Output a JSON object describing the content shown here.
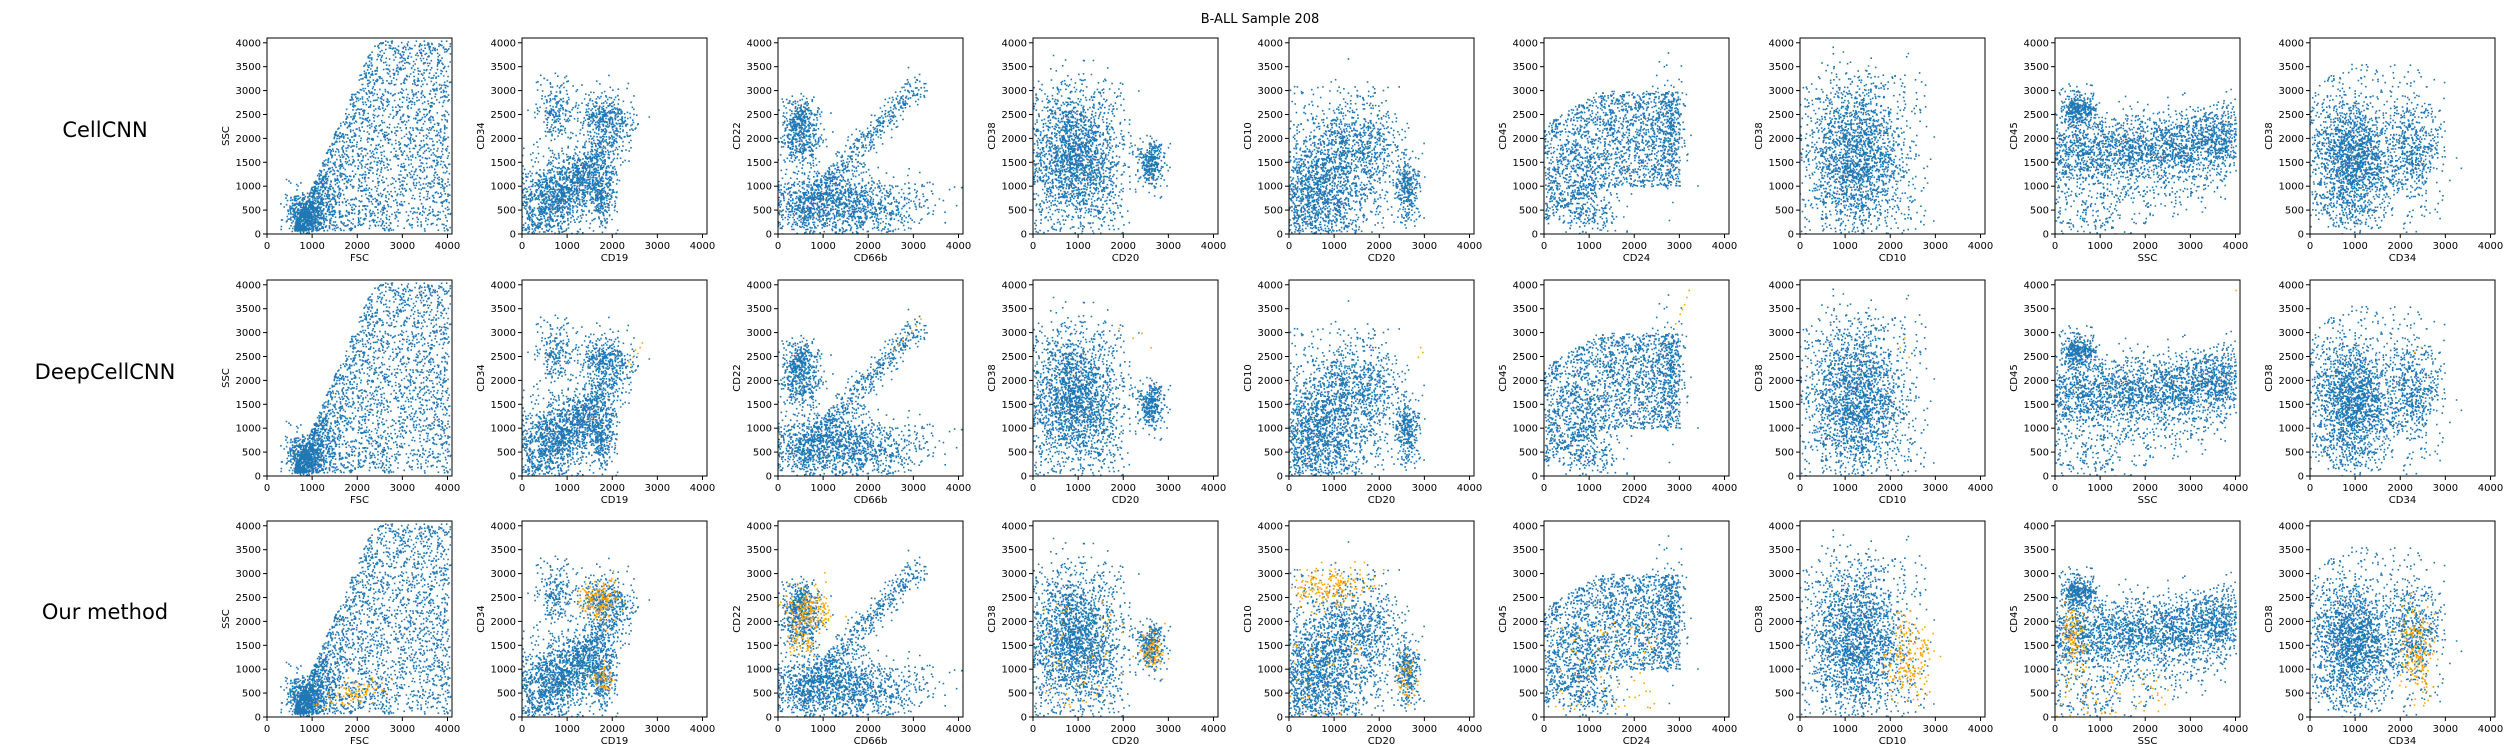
{
  "figure": {
    "title": "B-ALL Sample 208",
    "rows": [
      "CellCNN",
      "DeepCellCNN",
      "Our method"
    ],
    "colors": {
      "cells": "#1f77b4",
      "selected": "#ffa500"
    }
  },
  "chart_data": [
    {
      "type": "scatter",
      "row": "CellCNN",
      "xlabel": "FSC",
      "ylabel": "SSC",
      "xlim": [
        0,
        4100
      ],
      "ylim": [
        0,
        4100
      ],
      "xticks": [
        0,
        1000,
        2000,
        3000,
        4000
      ],
      "yticks": [
        0,
        500,
        1000,
        1500,
        2000,
        2500,
        3000,
        3500,
        4000
      ],
      "series": [
        {
          "values": []
        }
      ]
    },
    {
      "type": "scatter",
      "row": "CellCNN",
      "xlabel": "CD19",
      "ylabel": "CD34",
      "xlim": [
        0,
        4100
      ],
      "ylim": [
        0,
        4100
      ],
      "xticks": [
        0,
        1000,
        2000,
        3000,
        4000
      ],
      "yticks": [
        0,
        500,
        1000,
        1500,
        2000,
        2500,
        3000,
        3500,
        4000
      ],
      "series": [
        {
          "values": []
        }
      ]
    },
    {
      "type": "scatter",
      "row": "CellCNN",
      "xlabel": "CD66b",
      "ylabel": "CD22",
      "xlim": [
        0,
        4100
      ],
      "ylim": [
        0,
        4100
      ],
      "xticks": [
        0,
        1000,
        2000,
        3000,
        4000
      ],
      "yticks": [
        0,
        500,
        1000,
        1500,
        2000,
        2500,
        3000,
        3500,
        4000
      ],
      "series": [
        {
          "values": []
        }
      ]
    },
    {
      "type": "scatter",
      "row": "CellCNN",
      "xlabel": "CD20",
      "ylabel": "CD38",
      "xlim": [
        0,
        4100
      ],
      "ylim": [
        0,
        4100
      ],
      "xticks": [
        0,
        1000,
        2000,
        3000,
        4000
      ],
      "yticks": [
        0,
        500,
        1000,
        1500,
        2000,
        2500,
        3000,
        3500,
        4000
      ],
      "series": [
        {
          "values": []
        }
      ]
    },
    {
      "type": "scatter",
      "row": "CellCNN",
      "xlabel": "CD20",
      "ylabel": "CD10",
      "xlim": [
        0,
        4100
      ],
      "ylim": [
        0,
        4100
      ],
      "xticks": [
        0,
        1000,
        2000,
        3000,
        4000
      ],
      "yticks": [
        0,
        500,
        1000,
        1500,
        2000,
        2500,
        3000,
        3500,
        4000
      ],
      "series": [
        {
          "values": []
        }
      ]
    },
    {
      "type": "scatter",
      "row": "CellCNN",
      "xlabel": "CD24",
      "ylabel": "CD45",
      "xlim": [
        0,
        4100
      ],
      "ylim": [
        0,
        4100
      ],
      "xticks": [
        0,
        1000,
        2000,
        3000,
        4000
      ],
      "yticks": [
        0,
        500,
        1000,
        1500,
        2000,
        2500,
        3000,
        3500,
        4000
      ],
      "series": [
        {
          "values": []
        }
      ]
    },
    {
      "type": "scatter",
      "row": "CellCNN",
      "xlabel": "CD10",
      "ylabel": "CD38",
      "xlim": [
        0,
        4100
      ],
      "ylim": [
        0,
        4100
      ],
      "xticks": [
        0,
        1000,
        2000,
        3000,
        4000
      ],
      "yticks": [
        0,
        500,
        1000,
        1500,
        2000,
        2500,
        3000,
        3500,
        4000
      ],
      "series": [
        {
          "values": []
        }
      ]
    },
    {
      "type": "scatter",
      "row": "CellCNN",
      "xlabel": "SSC",
      "ylabel": "CD45",
      "xlim": [
        0,
        4100
      ],
      "ylim": [
        0,
        4100
      ],
      "xticks": [
        0,
        1000,
        2000,
        3000,
        4000
      ],
      "yticks": [
        0,
        500,
        1000,
        1500,
        2000,
        2500,
        3000,
        3500,
        4000
      ],
      "series": [
        {
          "values": []
        }
      ]
    },
    {
      "type": "scatter",
      "row": "CellCNN",
      "xlabel": "CD34",
      "ylabel": "CD38",
      "xlim": [
        0,
        4100
      ],
      "ylim": [
        0,
        4100
      ],
      "xticks": [
        0,
        1000,
        2000,
        3000,
        4000
      ],
      "yticks": [
        0,
        500,
        1000,
        1500,
        2000,
        2500,
        3000,
        3500,
        4000
      ],
      "series": [
        {
          "values": []
        }
      ]
    },
    {
      "type": "scatter",
      "row": "DeepCellCNN",
      "xlabel": "FSC",
      "ylabel": "SSC",
      "xlim": [
        0,
        4100
      ],
      "ylim": [
        0,
        4100
      ],
      "xticks": [
        0,
        1000,
        2000,
        3000,
        4000
      ],
      "yticks": [
        0,
        500,
        1000,
        1500,
        2000,
        2500,
        3000,
        3500,
        4000
      ],
      "series": [
        {
          "values": []
        },
        {
          "values": []
        }
      ]
    },
    {
      "type": "scatter",
      "row": "DeepCellCNN",
      "xlabel": "CD19",
      "ylabel": "CD34",
      "xlim": [
        0,
        4100
      ],
      "ylim": [
        0,
        4100
      ],
      "xticks": [
        0,
        1000,
        2000,
        3000,
        4000
      ],
      "yticks": [
        0,
        500,
        1000,
        1500,
        2000,
        2500,
        3000,
        3500,
        4000
      ],
      "series": [
        {
          "values": []
        },
        {
          "values": [
            [
              2350,
              2400
            ],
            [
              2450,
              2500
            ],
            [
              2550,
              2580
            ],
            [
              2500,
              2650
            ],
            [
              2600,
              2700
            ],
            [
              2400,
              2350
            ],
            [
              2650,
              2800
            ]
          ]
        }
      ]
    },
    {
      "type": "scatter",
      "row": "DeepCellCNN",
      "xlabel": "CD66b",
      "ylabel": "CD22",
      "xlim": [
        0,
        4100
      ],
      "ylim": [
        0,
        4100
      ],
      "xticks": [
        0,
        1000,
        2000,
        3000,
        4000
      ],
      "yticks": [
        0,
        500,
        1000,
        1500,
        2000,
        2500,
        3000,
        3500,
        4000
      ],
      "series": [
        {
          "values": []
        },
        {
          "values": [
            [
              2650,
              2750
            ],
            [
              2750,
              2850
            ],
            [
              2850,
              2950
            ],
            [
              2950,
              3050
            ],
            [
              3050,
              3150
            ],
            [
              3150,
              3300
            ],
            [
              2550,
              2650
            ]
          ]
        }
      ]
    },
    {
      "type": "scatter",
      "row": "DeepCellCNN",
      "xlabel": "CD20",
      "ylabel": "CD38",
      "xlim": [
        0,
        4100
      ],
      "ylim": [
        0,
        4100
      ],
      "xticks": [
        0,
        1000,
        2000,
        3000,
        4000
      ],
      "yticks": [
        0,
        500,
        1000,
        1500,
        2000,
        2500,
        3000,
        3500,
        4000
      ],
      "series": [
        {
          "values": []
        },
        {
          "values": [
            [
              2200,
              2900
            ],
            [
              2600,
              2700
            ],
            [
              1900,
              3100
            ],
            [
              2400,
              3000
            ]
          ]
        }
      ]
    },
    {
      "type": "scatter",
      "row": "DeepCellCNN",
      "xlabel": "CD20",
      "ylabel": "CD10",
      "xlim": [
        0,
        4100
      ],
      "ylim": [
        0,
        4100
      ],
      "xticks": [
        0,
        1000,
        2000,
        3000,
        4000
      ],
      "yticks": [
        0,
        500,
        1000,
        1500,
        2000,
        2500,
        3000,
        3500,
        4000
      ],
      "series": [
        {
          "values": []
        },
        {
          "values": [
            [
              2900,
              2700
            ],
            [
              2950,
              2600
            ],
            [
              2850,
              2500
            ]
          ]
        }
      ]
    },
    {
      "type": "scatter",
      "row": "DeepCellCNN",
      "xlabel": "CD24",
      "ylabel": "CD45",
      "xlim": [
        0,
        4100
      ],
      "ylim": [
        0,
        4100
      ],
      "xticks": [
        0,
        1000,
        2000,
        3000,
        4000
      ],
      "yticks": [
        0,
        500,
        1000,
        1500,
        2000,
        2500,
        3000,
        3500,
        4000
      ],
      "series": [
        {
          "values": []
        },
        {
          "values": [
            [
              2900,
              3200
            ],
            [
              3050,
              3500
            ],
            [
              3150,
              3750
            ],
            [
              3000,
              3400
            ],
            [
              3200,
              3900
            ],
            [
              3100,
              3600
            ]
          ]
        }
      ]
    },
    {
      "type": "scatter",
      "row": "DeepCellCNN",
      "xlabel": "CD10",
      "ylabel": "CD38",
      "xlim": [
        0,
        4100
      ],
      "ylim": [
        0,
        4100
      ],
      "xticks": [
        0,
        1000,
        2000,
        3000,
        4000
      ],
      "yticks": [
        0,
        500,
        1000,
        1500,
        2000,
        2500,
        3000,
        3500,
        4000
      ],
      "series": [
        {
          "values": []
        },
        {
          "values": [
            [
              2300,
              2900
            ],
            [
              2200,
              2700
            ],
            [
              2400,
              2500
            ]
          ]
        }
      ]
    },
    {
      "type": "scatter",
      "row": "DeepCellCNN",
      "xlabel": "SSC",
      "ylabel": "CD45",
      "xlim": [
        0,
        4100
      ],
      "ylim": [
        0,
        4100
      ],
      "xticks": [
        0,
        1000,
        2000,
        3000,
        4000
      ],
      "yticks": [
        0,
        500,
        1000,
        1500,
        2000,
        2500,
        3000,
        3500,
        4000
      ],
      "series": [
        {
          "values": []
        },
        {
          "values": [
            [
              4000,
              3900
            ]
          ]
        }
      ]
    },
    {
      "type": "scatter",
      "row": "DeepCellCNN",
      "xlabel": "CD34",
      "ylabel": "CD38",
      "xlim": [
        0,
        4100
      ],
      "ylim": [
        0,
        4100
      ],
      "xticks": [
        0,
        1000,
        2000,
        3000,
        4000
      ],
      "yticks": [
        0,
        500,
        1000,
        1500,
        2000,
        2500,
        3000,
        3500,
        4000
      ],
      "series": [
        {
          "values": []
        },
        {
          "values": [
            [
              2300,
              2600
            ],
            [
              2450,
              2700
            ]
          ]
        }
      ]
    },
    {
      "type": "scatter",
      "row": "Our method",
      "xlabel": "FSC",
      "ylabel": "SSC",
      "xlim": [
        0,
        4100
      ],
      "ylim": [
        0,
        4100
      ],
      "xticks": [
        0,
        1000,
        2000,
        3000,
        4000
      ],
      "yticks": [
        0,
        500,
        1000,
        1500,
        2000,
        2500,
        3000,
        3500,
        4000
      ],
      "series": [
        {
          "values": []
        },
        {
          "values": []
        }
      ]
    },
    {
      "type": "scatter",
      "row": "Our method",
      "xlabel": "CD19",
      "ylabel": "CD34",
      "xlim": [
        0,
        4100
      ],
      "ylim": [
        0,
        4100
      ],
      "xticks": [
        0,
        1000,
        2000,
        3000,
        4000
      ],
      "yticks": [
        0,
        500,
        1000,
        1500,
        2000,
        2500,
        3000,
        3500,
        4000
      ],
      "series": [
        {
          "values": []
        },
        {
          "values": []
        }
      ]
    },
    {
      "type": "scatter",
      "row": "Our method",
      "xlabel": "CD66b",
      "ylabel": "CD22",
      "xlim": [
        0,
        4100
      ],
      "ylim": [
        0,
        4100
      ],
      "xticks": [
        0,
        1000,
        2000,
        3000,
        4000
      ],
      "yticks": [
        0,
        500,
        1000,
        1500,
        2000,
        2500,
        3000,
        3500,
        4000
      ],
      "series": [
        {
          "values": []
        },
        {
          "values": []
        }
      ]
    },
    {
      "type": "scatter",
      "row": "Our method",
      "xlabel": "CD20",
      "ylabel": "CD38",
      "xlim": [
        0,
        4100
      ],
      "ylim": [
        0,
        4100
      ],
      "xticks": [
        0,
        1000,
        2000,
        3000,
        4000
      ],
      "yticks": [
        0,
        500,
        1000,
        1500,
        2000,
        2500,
        3000,
        3500,
        4000
      ],
      "series": [
        {
          "values": []
        },
        {
          "values": []
        }
      ]
    },
    {
      "type": "scatter",
      "row": "Our method",
      "xlabel": "CD20",
      "ylabel": "CD10",
      "xlim": [
        0,
        4100
      ],
      "ylim": [
        0,
        4100
      ],
      "xticks": [
        0,
        1000,
        2000,
        3000,
        4000
      ],
      "yticks": [
        0,
        500,
        1000,
        1500,
        2000,
        2500,
        3000,
        3500,
        4000
      ],
      "series": [
        {
          "values": []
        },
        {
          "values": []
        }
      ]
    },
    {
      "type": "scatter",
      "row": "Our method",
      "xlabel": "CD24",
      "ylabel": "CD45",
      "xlim": [
        0,
        4100
      ],
      "ylim": [
        0,
        4100
      ],
      "xticks": [
        0,
        1000,
        2000,
        3000,
        4000
      ],
      "yticks": [
        0,
        500,
        1000,
        1500,
        2000,
        2500,
        3000,
        3500,
        4000
      ],
      "series": [
        {
          "values": []
        },
        {
          "values": []
        }
      ]
    },
    {
      "type": "scatter",
      "row": "Our method",
      "xlabel": "CD10",
      "ylabel": "CD38",
      "xlim": [
        0,
        4100
      ],
      "ylim": [
        0,
        4100
      ],
      "xticks": [
        0,
        1000,
        2000,
        3000,
        4000
      ],
      "yticks": [
        0,
        500,
        1000,
        1500,
        2000,
        2500,
        3000,
        3500,
        4000
      ],
      "series": [
        {
          "values": []
        },
        {
          "values": []
        }
      ]
    },
    {
      "type": "scatter",
      "row": "Our method",
      "xlabel": "SSC",
      "ylabel": "CD45",
      "xlim": [
        0,
        4100
      ],
      "ylim": [
        0,
        4100
      ],
      "xticks": [
        0,
        1000,
        2000,
        3000,
        4000
      ],
      "yticks": [
        0,
        500,
        1000,
        1500,
        2000,
        2500,
        3000,
        3500,
        4000
      ],
      "series": [
        {
          "values": []
        },
        {
          "values": []
        }
      ]
    },
    {
      "type": "scatter",
      "row": "Our method",
      "xlabel": "CD34",
      "ylabel": "CD38",
      "xlim": [
        0,
        4100
      ],
      "ylim": [
        0,
        4100
      ],
      "xticks": [
        0,
        1000,
        2000,
        3000,
        4000
      ],
      "yticks": [
        0,
        500,
        1000,
        1500,
        2000,
        2500,
        3000,
        3500,
        4000
      ],
      "series": [
        {
          "values": []
        },
        {
          "values": []
        }
      ]
    }
  ]
}
